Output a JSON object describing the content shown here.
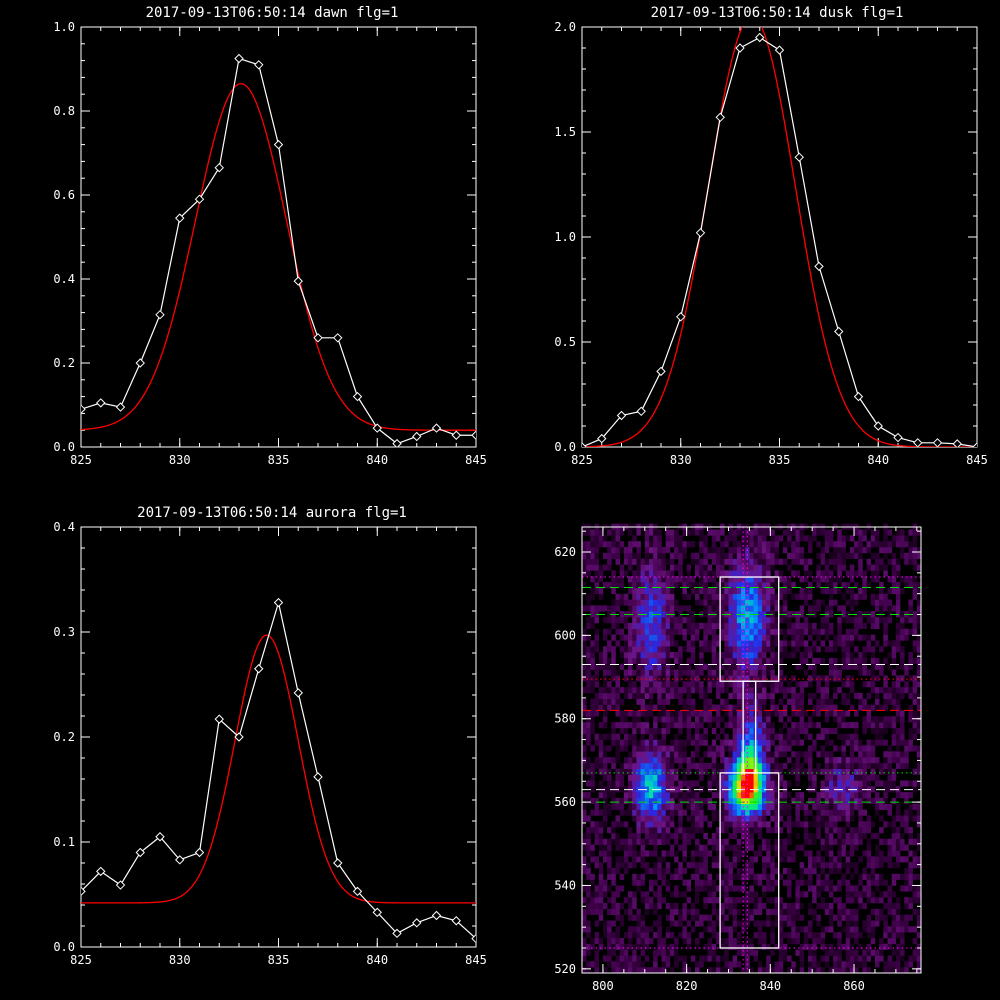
{
  "colors": {
    "background": "#000000",
    "axis": "#ffffff",
    "data": "#ffffff",
    "fit": "#ff0000",
    "green_line": "#00dd00",
    "white_dash": "#ffffff",
    "red_dash": "#ff0000",
    "magenta_dot": "#ff00ff"
  },
  "chart_data": [
    {
      "type": "line",
      "title": "2017-09-13T06:50:14 dawn flg=1",
      "xlim": [
        825,
        845
      ],
      "ylim": [
        0,
        1.0
      ],
      "xticks": [
        "825",
        "830",
        "835",
        "840",
        "845"
      ],
      "yticks": [
        "0.0",
        "0.2",
        "0.4",
        "0.6",
        "0.8",
        "1.0"
      ],
      "ytick_values": [
        0,
        0.2,
        0.4,
        0.6,
        0.8,
        1.0
      ],
      "series": [
        {
          "kind": "data",
          "x": [
            825,
            826,
            827,
            828,
            829,
            830,
            831,
            832,
            833,
            834,
            835,
            836,
            837,
            838,
            839,
            840,
            841,
            842,
            843,
            844,
            845
          ],
          "y": [
            0.09,
            0.105,
            0.095,
            0.2,
            0.315,
            0.545,
            0.59,
            0.665,
            0.925,
            0.91,
            0.72,
            0.395,
            0.26,
            0.26,
            0.12,
            0.045,
            0.008,
            0.025,
            0.045,
            0.028,
            0.028
          ]
        },
        {
          "kind": "fit",
          "amplitude": 0.825,
          "center": 833.1,
          "sigma": 2.3,
          "offset": 0.04
        }
      ]
    },
    {
      "type": "line",
      "title": "2017-09-13T06:50:14 dusk flg=1",
      "xlim": [
        825,
        845
      ],
      "ylim": [
        0,
        2.0
      ],
      "xticks": [
        "825",
        "830",
        "835",
        "840",
        "845"
      ],
      "yticks": [
        "0.0",
        "0.5",
        "1.0",
        "1.5",
        "2.0"
      ],
      "ytick_values": [
        0,
        0.5,
        1.0,
        1.5,
        2.0
      ],
      "series": [
        {
          "kind": "data",
          "x": [
            825,
            826,
            827,
            828,
            829,
            830,
            831,
            832,
            833,
            834,
            835,
            836,
            837,
            838,
            839,
            840,
            841,
            842,
            843,
            844,
            845
          ],
          "y": [
            0.0,
            0.04,
            0.15,
            0.17,
            0.36,
            0.62,
            1.02,
            1.57,
            1.9,
            1.95,
            1.89,
            1.38,
            0.86,
            0.55,
            0.24,
            0.1,
            0.045,
            0.02,
            0.02,
            0.015,
            0.0
          ]
        },
        {
          "kind": "fit",
          "amplitude": 2.05,
          "center": 833.6,
          "sigma": 2.2,
          "offset": 0.0
        }
      ]
    },
    {
      "type": "line",
      "title": "2017-09-13T06:50:14 aurora flg=1",
      "xlim": [
        825,
        845
      ],
      "ylim": [
        0,
        0.4
      ],
      "xticks": [
        "825",
        "830",
        "835",
        "840",
        "845"
      ],
      "yticks": [
        "0.0",
        "0.1",
        "0.2",
        "0.3",
        "0.4"
      ],
      "ytick_values": [
        0,
        0.1,
        0.2,
        0.3,
        0.4
      ],
      "series": [
        {
          "kind": "data",
          "x": [
            825,
            826,
            827,
            828,
            829,
            830,
            831,
            832,
            833,
            834,
            835,
            836,
            837,
            838,
            839,
            840,
            841,
            842,
            843,
            844,
            845
          ],
          "y": [
            0.053,
            0.072,
            0.059,
            0.09,
            0.105,
            0.083,
            0.09,
            0.217,
            0.2,
            0.265,
            0.328,
            0.242,
            0.162,
            0.08,
            0.053,
            0.033,
            0.013,
            0.023,
            0.03,
            0.025,
            0.008
          ]
        },
        {
          "kind": "fit",
          "amplitude": 0.255,
          "center": 834.4,
          "sigma": 1.6,
          "offset": 0.042
        }
      ]
    },
    {
      "type": "heatmap",
      "xlim": [
        795,
        876
      ],
      "ylim": [
        519,
        626
      ],
      "xticks": [
        "800",
        "820",
        "840",
        "860"
      ],
      "xtick_values": [
        800,
        820,
        840,
        860
      ],
      "yticks": [
        "520",
        "540",
        "560",
        "580",
        "600",
        "620"
      ],
      "ytick_values": [
        520,
        540,
        560,
        580,
        600,
        620
      ],
      "blobs": [
        {
          "x": 834,
          "y": 563,
          "sx": 2.8,
          "sy": 4.5,
          "amp": 1.0
        },
        {
          "x": 835,
          "y": 573,
          "sx": 2.2,
          "sy": 6.0,
          "amp": 0.35
        },
        {
          "x": 834,
          "y": 604,
          "sx": 3.0,
          "sy": 9.0,
          "amp": 0.42
        },
        {
          "x": 811,
          "y": 563,
          "sx": 2.8,
          "sy": 6.0,
          "amp": 0.45
        },
        {
          "x": 811,
          "y": 602,
          "sx": 2.8,
          "sy": 9.0,
          "amp": 0.28
        },
        {
          "x": 857,
          "y": 563,
          "sx": 3.0,
          "sy": 4.0,
          "amp": 0.2
        }
      ],
      "boxes": [
        {
          "x0": 828,
          "x1": 842,
          "y0": 589,
          "y1": 614
        },
        {
          "x0": 828,
          "x1": 842,
          "y0": 525,
          "y1": 567
        },
        {
          "x0": 833.5,
          "x1": 836.5,
          "y0": 567,
          "y1": 589
        }
      ],
      "hlines": [
        {
          "y": 611.5,
          "color": "green",
          "style": "dash"
        },
        {
          "y": 605,
          "color": "green",
          "style": "dash"
        },
        {
          "y": 593,
          "color": "white",
          "style": "dash"
        },
        {
          "y": 589.5,
          "color": "red",
          "style": "dot"
        },
        {
          "y": 582,
          "color": "red",
          "style": "dash"
        },
        {
          "y": 567,
          "color": "green",
          "style": "dot"
        },
        {
          "y": 563,
          "color": "white",
          "style": "dash"
        },
        {
          "y": 560,
          "color": "green",
          "style": "dash"
        },
        {
          "y": 614,
          "color": "magenta",
          "style": "dot"
        },
        {
          "y": 525,
          "color": "magenta",
          "style": "dot"
        }
      ],
      "vlines": [
        {
          "x": 833.5,
          "color": "magenta",
          "style": "dot"
        },
        {
          "x": 834.5,
          "color": "magenta",
          "style": "dot"
        }
      ]
    }
  ]
}
